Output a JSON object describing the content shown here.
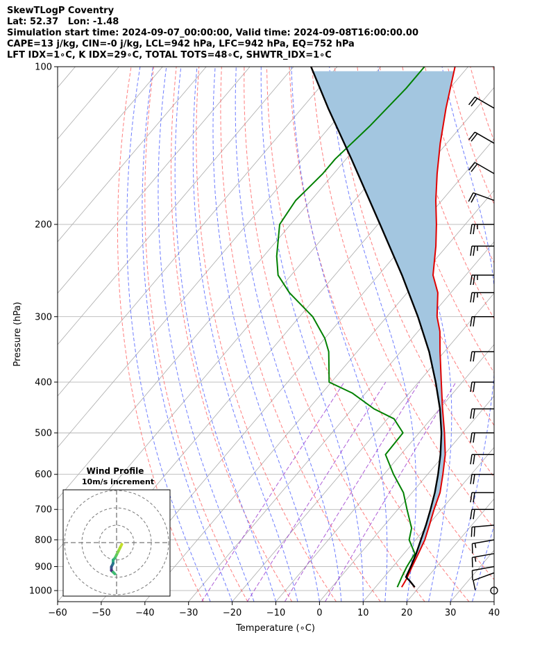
{
  "header": {
    "line1": "SkewTLogP Coventry",
    "line2": "Lat: 52.37   Lon: -1.48",
    "line3": "Simulation start time: 2024-09-07_00:00:00, Valid time: 2024-09-08T16:00:00.00",
    "line4": "CAPE=13 j/kg, CIN=-0 j/kg, LCL=942 hPa, LFC=942 hPa, EQ=752 hPa",
    "line5": "LFT IDX=1∘C, K IDX=29∘C, TOTAL TOTS=48∘C, SHWTR_IDX=1∘C"
  },
  "chart_data": [
    {
      "type": "line",
      "subtype": "skew-t log-p",
      "xlabel": "Temperature (∘C)",
      "ylabel": "Pressure (hPa)",
      "xlim": [
        -60,
        40
      ],
      "ylim": [
        1050,
        100
      ],
      "y_scale": "log",
      "grid": true,
      "x_ticks": [
        "−60",
        "−50",
        "−40",
        "−30",
        "−20",
        "−10",
        "0",
        "10",
        "20",
        "30",
        "40"
      ],
      "y_ticks": [
        "100",
        "200",
        "300",
        "400",
        "500",
        "600",
        "700",
        "800",
        "900",
        "1000"
      ],
      "colors": {
        "temperature": "#e00000",
        "dewpoint": "#008000",
        "parcel": "#000000",
        "cape_fill": "#a3c6e0",
        "dry_adiabat": "#ff6666",
        "moist_adiabat": "#5566ff",
        "mixing_ratio": "#9933cc",
        "isotherm": "#aaaaaa"
      },
      "series": [
        {
          "role": "temperature",
          "pressure": [
            985,
            950,
            900,
            850,
            800,
            750,
            700,
            650,
            600,
            550,
            500,
            450,
            400,
            350,
            320,
            300,
            270,
            250,
            220,
            200,
            180,
            160,
            140,
            120,
            100
          ],
          "values": [
            16,
            15.5,
            14.4,
            13.3,
            12.1,
            10.3,
            8.3,
            6.4,
            3.5,
            0.2,
            -4.2,
            -9.3,
            -14.8,
            -21,
            -25,
            -28.5,
            -33,
            -37.5,
            -42.5,
            -46.6,
            -51.4,
            -56.3,
            -61.5,
            -67,
            -73
          ]
        },
        {
          "role": "dewpoint",
          "pressure": [
            985,
            940,
            900,
            850,
            800,
            760,
            700,
            650,
            600,
            550,
            500,
            470,
            450,
            420,
            400,
            370,
            350,
            330,
            300,
            270,
            250,
            230,
            200,
            190,
            180,
            170,
            160,
            150,
            130,
            110,
            100
          ],
          "values": [
            15,
            14,
            13.2,
            12.5,
            8.5,
            6.8,
            2.1,
            -2,
            -7.8,
            -13.5,
            -13.7,
            -18.5,
            -25,
            -33,
            -40.5,
            -44,
            -46.5,
            -50,
            -57,
            -67,
            -73,
            -77,
            -82.5,
            -83,
            -83.5,
            -83,
            -82.5,
            -82.5,
            -81,
            -80,
            -80
          ]
        },
        {
          "role": "parcel",
          "pressure": [
            985,
            960,
            942,
            900,
            850,
            800,
            750,
            700,
            650,
            600,
            550,
            500,
            450,
            400,
            350,
            300,
            250,
            200,
            150,
            120,
            100
          ],
          "values": [
            19,
            16.8,
            15,
            14.1,
            12.8,
            11.2,
            9.5,
            7.5,
            5.2,
            2.4,
            -0.9,
            -4.9,
            -9.9,
            -16.1,
            -23.5,
            -32.9,
            -44.6,
            -59.5,
            -78.8,
            -94,
            -106
          ]
        }
      ],
      "wind_barbs": {
        "pressure": [
          1000,
          925,
          900,
          850,
          800,
          750,
          700,
          650,
          600,
          550,
          500,
          450,
          400,
          350,
          300,
          270,
          250,
          220,
          200,
          180,
          160,
          140,
          120
        ],
        "speed_kt": [
          0,
          10,
          10,
          15,
          15,
          20,
          20,
          20,
          20,
          20,
          20,
          20,
          20,
          20,
          20,
          25,
          25,
          25,
          25,
          20,
          20,
          20,
          20
        ],
        "direction_deg": [
          0,
          250,
          260,
          260,
          260,
          265,
          270,
          270,
          270,
          270,
          270,
          270,
          270,
          270,
          270,
          270,
          270,
          270,
          270,
          290,
          300,
          300,
          300
        ]
      }
    },
    {
      "type": "scatter",
      "subtype": "hodograph",
      "title": "Wind Profile",
      "subtitle": "10m/s increment",
      "ring_increment": 10,
      "u": [
        3,
        2,
        1,
        0,
        -1,
        -2,
        -2,
        -3,
        -3,
        -2,
        -1
      ],
      "v": [
        -1,
        -3,
        -5,
        -7,
        -9,
        -10,
        -12,
        -14,
        -16,
        -17,
        -18
      ]
    }
  ]
}
